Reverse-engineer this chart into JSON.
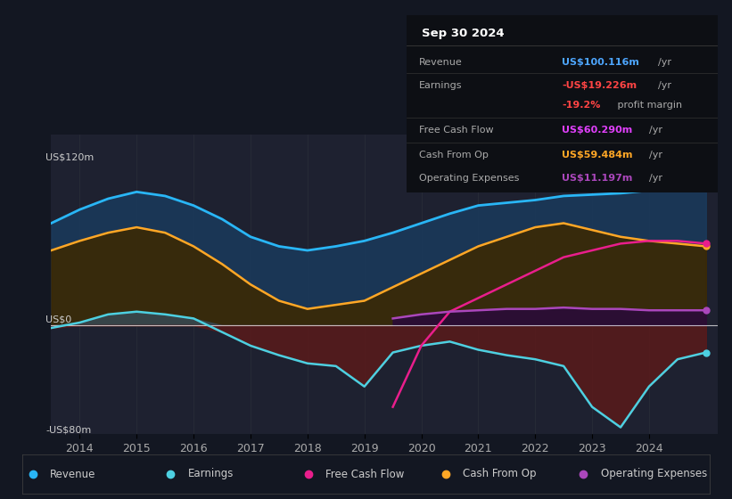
{
  "background_color": "#131722",
  "plot_bg_color": "#1e2130",
  "ylabel_top": "US$120m",
  "ylabel_zero": "US$0",
  "ylabel_bottom": "-US$80m",
  "ylim": [
    -80,
    140
  ],
  "xlim": [
    2013.5,
    2025.2
  ],
  "xticks": [
    2014,
    2015,
    2016,
    2017,
    2018,
    2019,
    2020,
    2021,
    2022,
    2023,
    2024
  ],
  "zero_line_color": "#ffffff",
  "grid_color": "#2a2e3a",
  "info_box": {
    "date": "Sep 30 2024",
    "rows": [
      {
        "label": "Revenue",
        "value": "US$100.116m",
        "unit": "/yr",
        "value_color": "#4da6ff"
      },
      {
        "label": "Earnings",
        "value": "-US$19.226m",
        "unit": "/yr",
        "value_color": "#ff4444"
      },
      {
        "label": "",
        "value": "-19.2%",
        "unit": " profit margin",
        "value_color": "#ff4444"
      },
      {
        "label": "Free Cash Flow",
        "value": "US$60.290m",
        "unit": "/yr",
        "value_color": "#e040fb"
      },
      {
        "label": "Cash From Op",
        "value": "US$59.484m",
        "unit": "/yr",
        "value_color": "#ffa726"
      },
      {
        "label": "Operating Expenses",
        "value": "US$11.197m",
        "unit": "/yr",
        "value_color": "#ab47bc"
      }
    ]
  },
  "series": {
    "years": [
      2013.5,
      2014.0,
      2014.5,
      2015.0,
      2015.5,
      2016.0,
      2016.5,
      2017.0,
      2017.5,
      2018.0,
      2018.5,
      2019.0,
      2019.5,
      2020.0,
      2020.5,
      2021.0,
      2021.5,
      2022.0,
      2022.5,
      2023.0,
      2023.5,
      2024.0,
      2024.5,
      2025.0
    ],
    "revenue": [
      75,
      85,
      93,
      98,
      95,
      88,
      78,
      65,
      58,
      55,
      58,
      62,
      68,
      75,
      82,
      88,
      90,
      92,
      95,
      96,
      97,
      99,
      101,
      103
    ],
    "earnings": [
      -2,
      2,
      8,
      10,
      8,
      5,
      -5,
      -15,
      -22,
      -28,
      -30,
      -45,
      -20,
      -15,
      -12,
      -18,
      -22,
      -25,
      -30,
      -60,
      -75,
      -45,
      -25,
      -20
    ],
    "free_cash_flow": [
      null,
      null,
      null,
      null,
      null,
      null,
      null,
      null,
      null,
      null,
      null,
      null,
      -60,
      -15,
      10,
      20,
      30,
      40,
      50,
      55,
      60,
      62,
      62,
      60
    ],
    "cash_from_op": [
      55,
      62,
      68,
      72,
      68,
      58,
      45,
      30,
      18,
      12,
      15,
      18,
      28,
      38,
      48,
      58,
      65,
      72,
      75,
      70,
      65,
      62,
      60,
      58
    ],
    "operating_expenses": [
      null,
      null,
      null,
      null,
      null,
      null,
      null,
      null,
      null,
      null,
      null,
      null,
      5,
      8,
      10,
      11,
      12,
      12,
      13,
      12,
      12,
      11,
      11,
      11
    ]
  },
  "colors": {
    "revenue": "#29b6f6",
    "revenue_fill": "#1a3a5c",
    "earnings_fill_pos": "#37474f",
    "earnings_fill_neg": "#5a1a1a",
    "free_cash_flow": "#e91e8c",
    "cash_from_op": "#ffa726",
    "cash_from_op_fill": "#3d2800",
    "operating_expenses": "#ab47bc",
    "operating_expenses_fill": "#2a0a3a",
    "earnings_line": "#4dd0e1"
  },
  "legend": [
    {
      "label": "Revenue",
      "color": "#29b6f6"
    },
    {
      "label": "Earnings",
      "color": "#4dd0e1"
    },
    {
      "label": "Free Cash Flow",
      "color": "#e91e8c"
    },
    {
      "label": "Cash From Op",
      "color": "#ffa726"
    },
    {
      "label": "Operating Expenses",
      "color": "#ab47bc"
    }
  ]
}
